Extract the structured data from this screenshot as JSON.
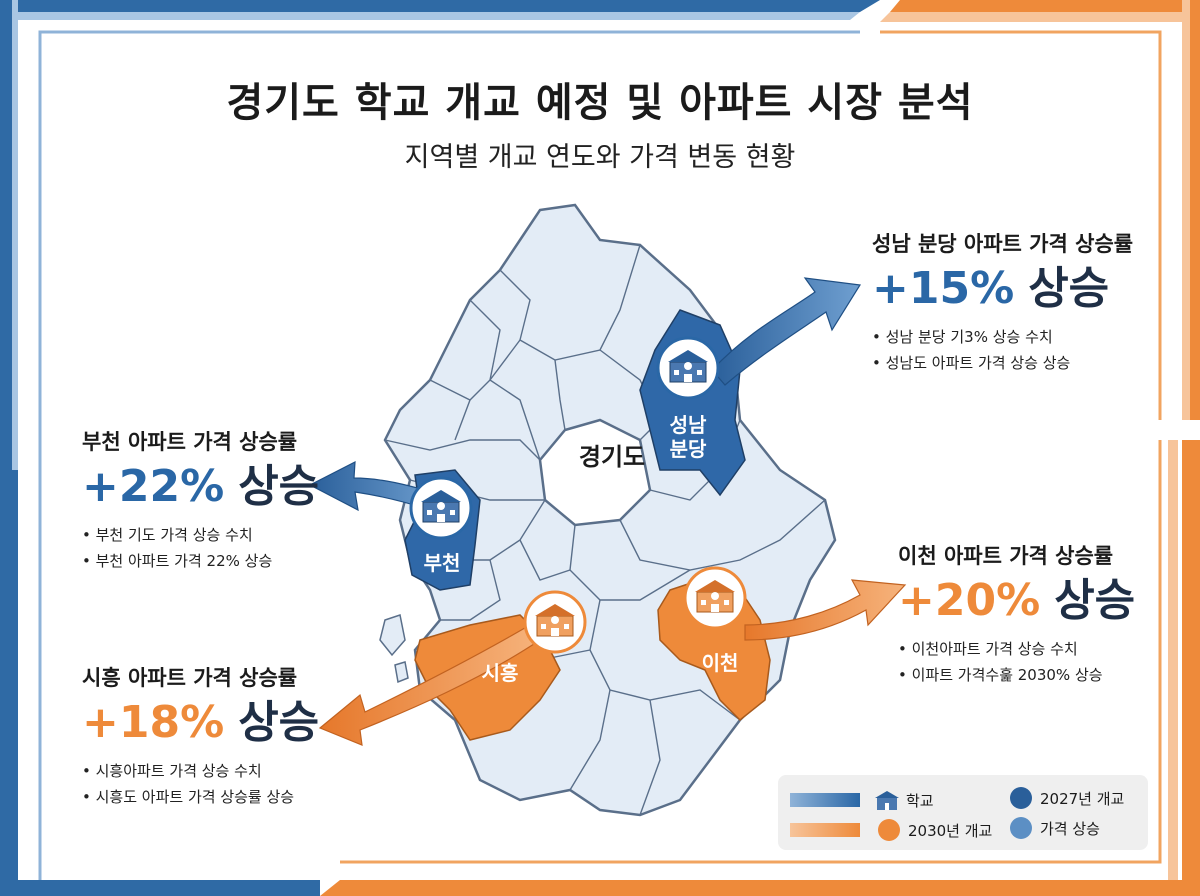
{
  "header": {
    "title": "경기도 학교 개교 예정 및 아파트 시장 분석",
    "subtitle": "지역별 개교 연도와 가격 변동 현황"
  },
  "map": {
    "center_label": "경기도",
    "regions": {
      "seongnam": "성남\n분당",
      "bucheon": "부천",
      "siheung": "시흥",
      "icheon": "이천"
    }
  },
  "panels": {
    "seongnam": {
      "title": "성남 분당 아파트 가격 상승률",
      "pct": "+15%",
      "word": "상승",
      "bullets": [
        "성남 분당 기3% 상승 수치",
        "성남도 아파트 가격 상승 상승"
      ]
    },
    "bucheon": {
      "title": "부천 아파트 가격 상승률",
      "pct": "+22%",
      "word": "상승",
      "bullets": [
        "부천 기도 가격 상승 수치",
        "부천 아파트 가격 22% 상승"
      ]
    },
    "icheon": {
      "title": "이천 아파트 가격 상승률",
      "pct": "+20%",
      "word": "상승",
      "bullets": [
        "이천아파트 가격 상승 수치",
        "이파트 가격수훑 2030% 상승"
      ]
    },
    "siheung": {
      "title": "시흥 아파트 가격 상승률",
      "pct": "+18%",
      "word": "상승",
      "bullets": [
        "시흥아파트 가격 상승 수치",
        "시흥도 아파트 가격 상승률 상승"
      ]
    }
  },
  "legend": {
    "school": "학교",
    "open_2027": "2027년 개교",
    "open_2030": "2030년 개교",
    "price_up": "가격 상승"
  },
  "colors": {
    "blue": "#2a67a6",
    "blue_light": "#4f86bf",
    "orange": "#ee8a3a",
    "region_fill": "#e3ecf6",
    "region_stroke": "#5a6f8a"
  },
  "icons": {
    "school": "school-building-icon",
    "arrow": "curved-arrow-icon"
  }
}
